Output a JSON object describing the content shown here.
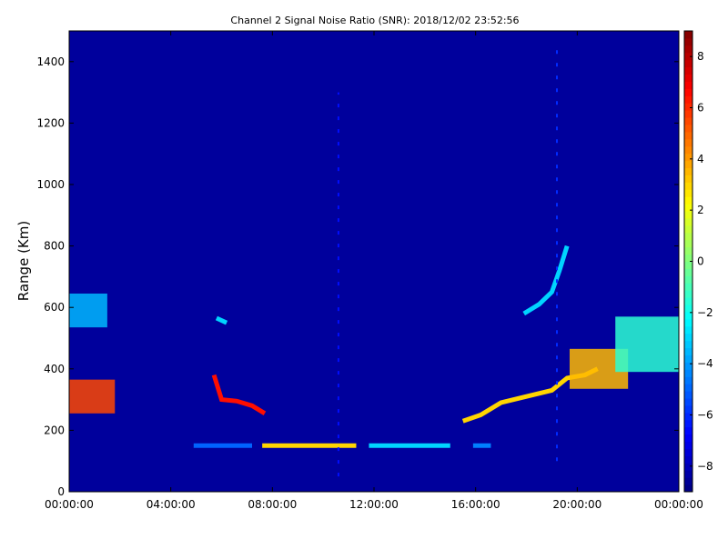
{
  "chart_data": {
    "type": "heatmap",
    "title": "Channel 2 Signal Noise Ratio (SNR): 2018/12/02 23:52:56",
    "xlabel": "",
    "ylabel": "Range (Km)",
    "x_tick_labels": [
      "00:00:00",
      "04:00:00",
      "08:00:00",
      "12:00:00",
      "16:00:00",
      "20:00:00",
      "00:00:00"
    ],
    "x_range_hours": [
      0,
      24
    ],
    "ylim": [
      0,
      1500
    ],
    "y_ticks": [
      0,
      200,
      400,
      600,
      800,
      1000,
      1200,
      1400
    ],
    "colorbar": {
      "colormap": "jet",
      "range": [
        -9,
        9
      ],
      "ticks": [
        -8,
        -6,
        -4,
        -2,
        0,
        2,
        4,
        6,
        8
      ]
    },
    "background_value": -8.5,
    "features": [
      {
        "kind": "patch",
        "t_start": 0.0,
        "t_end": 1.5,
        "r_center": 590,
        "r_halfwidth": 55,
        "value": -3.5
      },
      {
        "kind": "patch",
        "t_start": 0.0,
        "t_end": 1.8,
        "r_center": 310,
        "r_halfwidth": 55,
        "value": 5.5
      },
      {
        "kind": "trace",
        "points": [
          [
            5.7,
            380
          ],
          [
            6.0,
            300
          ],
          [
            6.6,
            295
          ],
          [
            7.2,
            280
          ],
          [
            7.7,
            255
          ]
        ],
        "value": 6.5
      },
      {
        "kind": "trace",
        "points": [
          [
            5.8,
            565
          ],
          [
            6.2,
            550
          ]
        ],
        "value": -3.0
      },
      {
        "kind": "trace",
        "points": [
          [
            4.9,
            150
          ],
          [
            7.2,
            150
          ]
        ],
        "value": -5.0
      },
      {
        "kind": "trace",
        "points": [
          [
            7.6,
            150
          ],
          [
            11.3,
            150
          ]
        ],
        "value": 3.0
      },
      {
        "kind": "trace",
        "points": [
          [
            11.8,
            150
          ],
          [
            15.0,
            150
          ]
        ],
        "value": -3.0
      },
      {
        "kind": "trace",
        "points": [
          [
            15.9,
            150
          ],
          [
            16.6,
            150
          ]
        ],
        "value": -4.5
      },
      {
        "kind": "trace",
        "points": [
          [
            15.5,
            230
          ],
          [
            16.2,
            250
          ],
          [
            17.0,
            290
          ],
          [
            18.0,
            310
          ],
          [
            19.0,
            330
          ],
          [
            19.6,
            370
          ],
          [
            20.3,
            380
          ],
          [
            20.8,
            400
          ]
        ],
        "value": 3.0
      },
      {
        "kind": "trace",
        "points": [
          [
            17.9,
            580
          ],
          [
            18.5,
            610
          ],
          [
            19.0,
            650
          ],
          [
            19.3,
            720
          ],
          [
            19.6,
            800
          ]
        ],
        "value": -3.0
      },
      {
        "kind": "patch",
        "t_start": 19.7,
        "t_end": 22.0,
        "r_center": 400,
        "r_halfwidth": 65,
        "value": 3.5
      },
      {
        "kind": "patch",
        "t_start": 21.5,
        "t_end": 24.0,
        "r_center": 480,
        "r_halfwidth": 90,
        "value": -1.5
      },
      {
        "kind": "column",
        "t": 19.2,
        "r_start": 100,
        "r_end": 1450,
        "value": -6.0
      },
      {
        "kind": "column",
        "t": 10.6,
        "r_start": 50,
        "r_end": 1300,
        "value": -6.5
      }
    ]
  }
}
